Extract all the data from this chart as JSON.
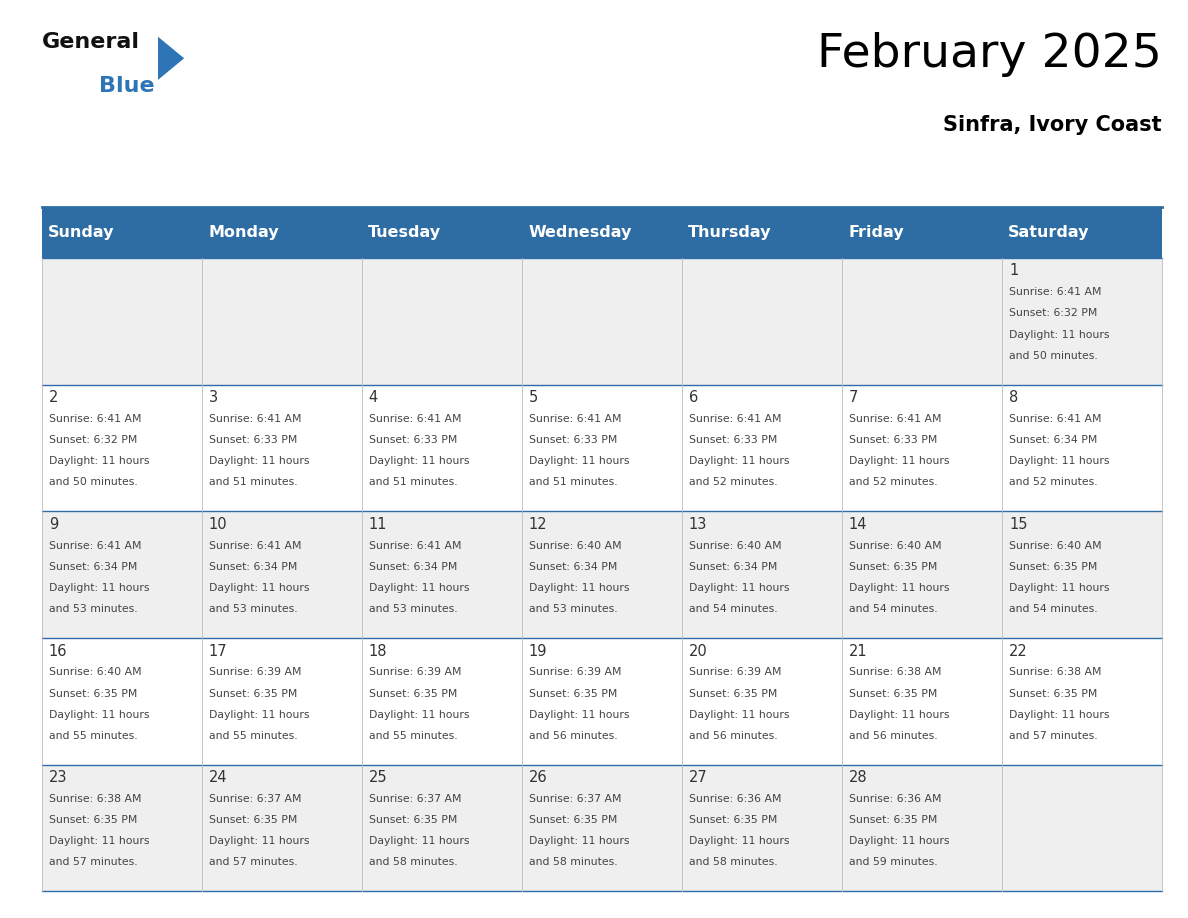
{
  "title": "February 2025",
  "subtitle": "Sinfra, Ivory Coast",
  "days_of_week": [
    "Sunday",
    "Monday",
    "Tuesday",
    "Wednesday",
    "Thursday",
    "Friday",
    "Saturday"
  ],
  "header_bg": "#2E6DA4",
  "header_text": "#FFFFFF",
  "row_bg_light": "#EFEFEF",
  "row_bg_white": "#FFFFFF",
  "cell_border": "#2E6DA4",
  "day_number_color": "#333333",
  "info_text_color": "#444444",
  "title_color": "#000000",
  "subtitle_color": "#000000",
  "logo_general_color": "#111111",
  "logo_blue_color": "#2E75B6",
  "calendar_data": [
    [
      null,
      null,
      null,
      null,
      null,
      null,
      {
        "day": 1,
        "sunrise": "6:41 AM",
        "sunset": "6:32 PM",
        "daylight_h": "11 hours",
        "daylight_m": "and 50 minutes."
      }
    ],
    [
      {
        "day": 2,
        "sunrise": "6:41 AM",
        "sunset": "6:32 PM",
        "daylight_h": "11 hours",
        "daylight_m": "and 50 minutes."
      },
      {
        "day": 3,
        "sunrise": "6:41 AM",
        "sunset": "6:33 PM",
        "daylight_h": "11 hours",
        "daylight_m": "and 51 minutes."
      },
      {
        "day": 4,
        "sunrise": "6:41 AM",
        "sunset": "6:33 PM",
        "daylight_h": "11 hours",
        "daylight_m": "and 51 minutes."
      },
      {
        "day": 5,
        "sunrise": "6:41 AM",
        "sunset": "6:33 PM",
        "daylight_h": "11 hours",
        "daylight_m": "and 51 minutes."
      },
      {
        "day": 6,
        "sunrise": "6:41 AM",
        "sunset": "6:33 PM",
        "daylight_h": "11 hours",
        "daylight_m": "and 52 minutes."
      },
      {
        "day": 7,
        "sunrise": "6:41 AM",
        "sunset": "6:33 PM",
        "daylight_h": "11 hours",
        "daylight_m": "and 52 minutes."
      },
      {
        "day": 8,
        "sunrise": "6:41 AM",
        "sunset": "6:34 PM",
        "daylight_h": "11 hours",
        "daylight_m": "and 52 minutes."
      }
    ],
    [
      {
        "day": 9,
        "sunrise": "6:41 AM",
        "sunset": "6:34 PM",
        "daylight_h": "11 hours",
        "daylight_m": "and 53 minutes."
      },
      {
        "day": 10,
        "sunrise": "6:41 AM",
        "sunset": "6:34 PM",
        "daylight_h": "11 hours",
        "daylight_m": "and 53 minutes."
      },
      {
        "day": 11,
        "sunrise": "6:41 AM",
        "sunset": "6:34 PM",
        "daylight_h": "11 hours",
        "daylight_m": "and 53 minutes."
      },
      {
        "day": 12,
        "sunrise": "6:40 AM",
        "sunset": "6:34 PM",
        "daylight_h": "11 hours",
        "daylight_m": "and 53 minutes."
      },
      {
        "day": 13,
        "sunrise": "6:40 AM",
        "sunset": "6:34 PM",
        "daylight_h": "11 hours",
        "daylight_m": "and 54 minutes."
      },
      {
        "day": 14,
        "sunrise": "6:40 AM",
        "sunset": "6:35 PM",
        "daylight_h": "11 hours",
        "daylight_m": "and 54 minutes."
      },
      {
        "day": 15,
        "sunrise": "6:40 AM",
        "sunset": "6:35 PM",
        "daylight_h": "11 hours",
        "daylight_m": "and 54 minutes."
      }
    ],
    [
      {
        "day": 16,
        "sunrise": "6:40 AM",
        "sunset": "6:35 PM",
        "daylight_h": "11 hours",
        "daylight_m": "and 55 minutes."
      },
      {
        "day": 17,
        "sunrise": "6:39 AM",
        "sunset": "6:35 PM",
        "daylight_h": "11 hours",
        "daylight_m": "and 55 minutes."
      },
      {
        "day": 18,
        "sunrise": "6:39 AM",
        "sunset": "6:35 PM",
        "daylight_h": "11 hours",
        "daylight_m": "and 55 minutes."
      },
      {
        "day": 19,
        "sunrise": "6:39 AM",
        "sunset": "6:35 PM",
        "daylight_h": "11 hours",
        "daylight_m": "and 56 minutes."
      },
      {
        "day": 20,
        "sunrise": "6:39 AM",
        "sunset": "6:35 PM",
        "daylight_h": "11 hours",
        "daylight_m": "and 56 minutes."
      },
      {
        "day": 21,
        "sunrise": "6:38 AM",
        "sunset": "6:35 PM",
        "daylight_h": "11 hours",
        "daylight_m": "and 56 minutes."
      },
      {
        "day": 22,
        "sunrise": "6:38 AM",
        "sunset": "6:35 PM",
        "daylight_h": "11 hours",
        "daylight_m": "and 57 minutes."
      }
    ],
    [
      {
        "day": 23,
        "sunrise": "6:38 AM",
        "sunset": "6:35 PM",
        "daylight_h": "11 hours",
        "daylight_m": "and 57 minutes."
      },
      {
        "day": 24,
        "sunrise": "6:37 AM",
        "sunset": "6:35 PM",
        "daylight_h": "11 hours",
        "daylight_m": "and 57 minutes."
      },
      {
        "day": 25,
        "sunrise": "6:37 AM",
        "sunset": "6:35 PM",
        "daylight_h": "11 hours",
        "daylight_m": "and 58 minutes."
      },
      {
        "day": 26,
        "sunrise": "6:37 AM",
        "sunset": "6:35 PM",
        "daylight_h": "11 hours",
        "daylight_m": "and 58 minutes."
      },
      {
        "day": 27,
        "sunrise": "6:36 AM",
        "sunset": "6:35 PM",
        "daylight_h": "11 hours",
        "daylight_m": "and 58 minutes."
      },
      {
        "day": 28,
        "sunrise": "6:36 AM",
        "sunset": "6:35 PM",
        "daylight_h": "11 hours",
        "daylight_m": "and 59 minutes."
      },
      null
    ]
  ]
}
